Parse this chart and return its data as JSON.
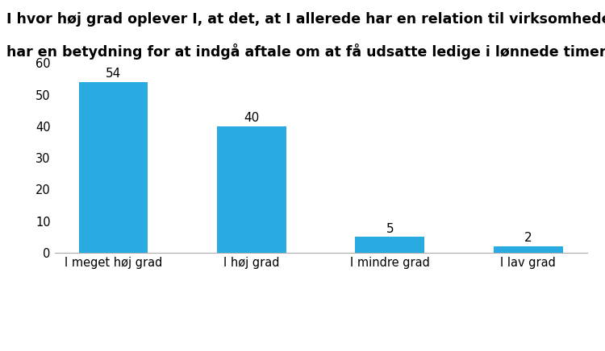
{
  "title_line1": "I hvor høj grad oplever I, at det, at I allerede har en relation til virksomhederne,",
  "title_line2": "har en betydning for at indgå aftale om at få udsatte ledige i lønnede timer? (%)",
  "categories": [
    "I meget høj grad",
    "I høj grad",
    "I mindre grad",
    "I lav grad"
  ],
  "values": [
    54,
    40,
    5,
    2
  ],
  "bar_color": "#29ABE2",
  "ylim": [
    0,
    60
  ],
  "yticks": [
    0,
    10,
    20,
    30,
    40,
    50,
    60
  ],
  "title_fontsize": 12.5,
  "value_fontsize": 11,
  "tick_fontsize": 10.5,
  "background_color": "#ffffff",
  "bottom_background": "#000000",
  "top_border_color": "#1a3060",
  "bottom_border_color": "#1a3060",
  "title_color": "#000000"
}
